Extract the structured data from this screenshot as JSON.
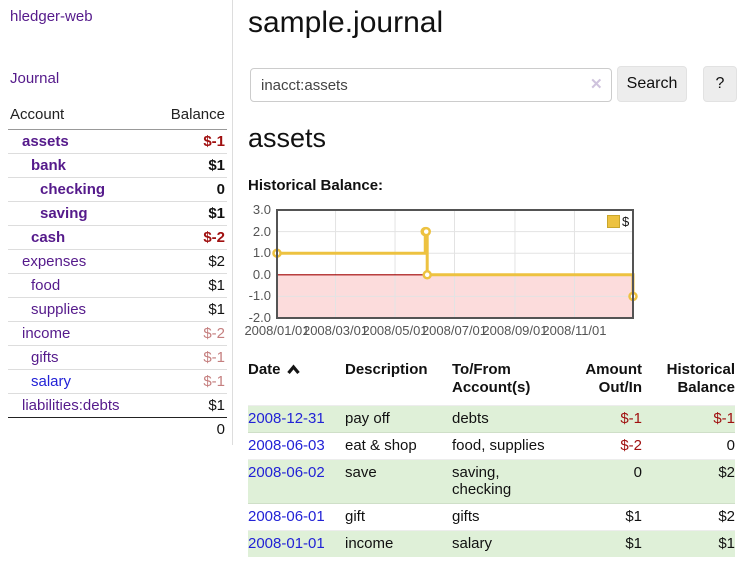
{
  "app": {
    "title": "hledger-web"
  },
  "sidebar": {
    "nav": [
      {
        "label": "Journal"
      }
    ],
    "accounts_table": {
      "headers": {
        "account": "Account",
        "balance": "Balance"
      },
      "rows": [
        {
          "name": "assets",
          "balance": "$-1",
          "level": 0,
          "selected": true,
          "visited": true
        },
        {
          "name": "bank",
          "balance": "$1",
          "level": 1,
          "selected": true,
          "visited": true
        },
        {
          "name": "checking",
          "balance": "0",
          "level": 2,
          "selected": true,
          "visited": true
        },
        {
          "name": "saving",
          "balance": "$1",
          "level": 2,
          "selected": true,
          "visited": true
        },
        {
          "name": "cash",
          "balance": "$-2",
          "level": 1,
          "selected": true,
          "visited": true
        },
        {
          "name": "expenses",
          "balance": "$2",
          "level": 0,
          "selected": false,
          "visited": true
        },
        {
          "name": "food",
          "balance": "$1",
          "level": 1,
          "selected": false,
          "visited": true
        },
        {
          "name": "supplies",
          "balance": "$1",
          "level": 1,
          "selected": false,
          "visited": true
        },
        {
          "name": "income",
          "balance": "$-2",
          "level": 0,
          "selected": false,
          "visited": true
        },
        {
          "name": "gifts",
          "balance": "$-1",
          "level": 1,
          "selected": false,
          "visited": true
        },
        {
          "name": "salary",
          "balance": "$-1",
          "level": 1,
          "selected": false,
          "visited": false
        },
        {
          "name": "liabilities:debts",
          "balance": "$1",
          "level": 0,
          "selected": false,
          "visited": true
        }
      ],
      "total": "0"
    }
  },
  "header": {
    "title": "sample.journal"
  },
  "search": {
    "value": "inacct:assets",
    "clear_icon": "✕",
    "button_label": "Search",
    "help_label": "?"
  },
  "account_page": {
    "title": "assets",
    "chart_label": "Historical Balance:"
  },
  "chart_data": {
    "type": "line",
    "title": "Historical Balance",
    "series": [
      {
        "name": "$",
        "color": "#edc240",
        "step": true,
        "points": [
          [
            "2008-01-01",
            1.0
          ],
          [
            "2008-06-01",
            2.0
          ],
          [
            "2008-06-02",
            2.0
          ],
          [
            "2008-06-03",
            0.0
          ],
          [
            "2008-12-31",
            -1.0
          ]
        ]
      }
    ],
    "x_ticks": [
      "2008/01/01",
      "2008/03/01",
      "2008/05/01",
      "2008/07/01",
      "2008/09/01",
      "2008/11/01"
    ],
    "y_ticks": [
      3.0,
      2.0,
      1.0,
      0.0,
      -1.0,
      -2.0
    ],
    "xlim": [
      "2008-01-01",
      "2008-12-31"
    ],
    "ylim": [
      -2.0,
      3.0
    ],
    "grid": true,
    "legend": {
      "position": "top-right",
      "entries": [
        "$"
      ]
    },
    "negative_region_color": "#fcdcdc",
    "zero_line_color": "#a00000"
  },
  "register_table": {
    "headers": [
      "Date",
      "Description",
      "To/From Account(s)",
      "Amount Out/In",
      "Historical Balance"
    ],
    "rows": [
      {
        "date": "2008-12-31",
        "description": "pay off",
        "accounts": "debts",
        "amount": "$-1",
        "balance": "$-1"
      },
      {
        "date": "2008-06-03",
        "description": "eat & shop",
        "accounts": "food, supplies",
        "amount": "$-2",
        "balance": "0"
      },
      {
        "date": "2008-06-02",
        "description": "save",
        "accounts": "saving, checking",
        "amount": "0",
        "balance": "$2"
      },
      {
        "date": "2008-06-01",
        "description": "gift",
        "accounts": "gifts",
        "amount": "$1",
        "balance": "$2"
      },
      {
        "date": "2008-01-01",
        "description": "income",
        "accounts": "salary",
        "amount": "$1",
        "balance": "$1"
      }
    ]
  },
  "colors": {
    "link_purple": "#551a8b",
    "link_blue": "#2222d6",
    "negative_strong": "#a01010",
    "negative_soft": "#c57f7f",
    "row_stripe_green": "#dff0d8",
    "series_gold": "#edc240",
    "zero_line": "#a00000",
    "negative_region": "#fcdcdc"
  }
}
